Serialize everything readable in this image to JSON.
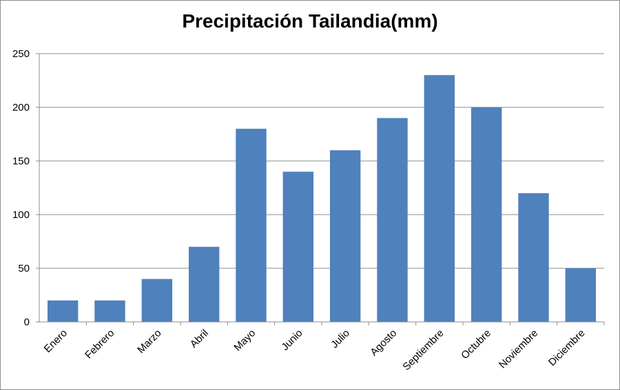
{
  "chart_data": {
    "type": "bar",
    "title": "Precipitación Tailandia(mm)",
    "xlabel": "",
    "ylabel": "",
    "categories": [
      "Enero",
      "Febrero",
      "Marzo",
      "Abril",
      "Mayo",
      "Junio",
      "Julio",
      "Agosto",
      "Septiembre",
      "Octubre",
      "Noviembre",
      "Diciembre"
    ],
    "values": [
      20,
      20,
      40,
      70,
      180,
      140,
      160,
      190,
      230,
      200,
      120,
      50
    ],
    "ylim": [
      0,
      250
    ],
    "yticks": [
      0,
      50,
      100,
      150,
      200,
      250
    ],
    "grid": true,
    "legend": "none",
    "bar_color": "#4f81bd",
    "grid_color": "#8c8c8c"
  }
}
